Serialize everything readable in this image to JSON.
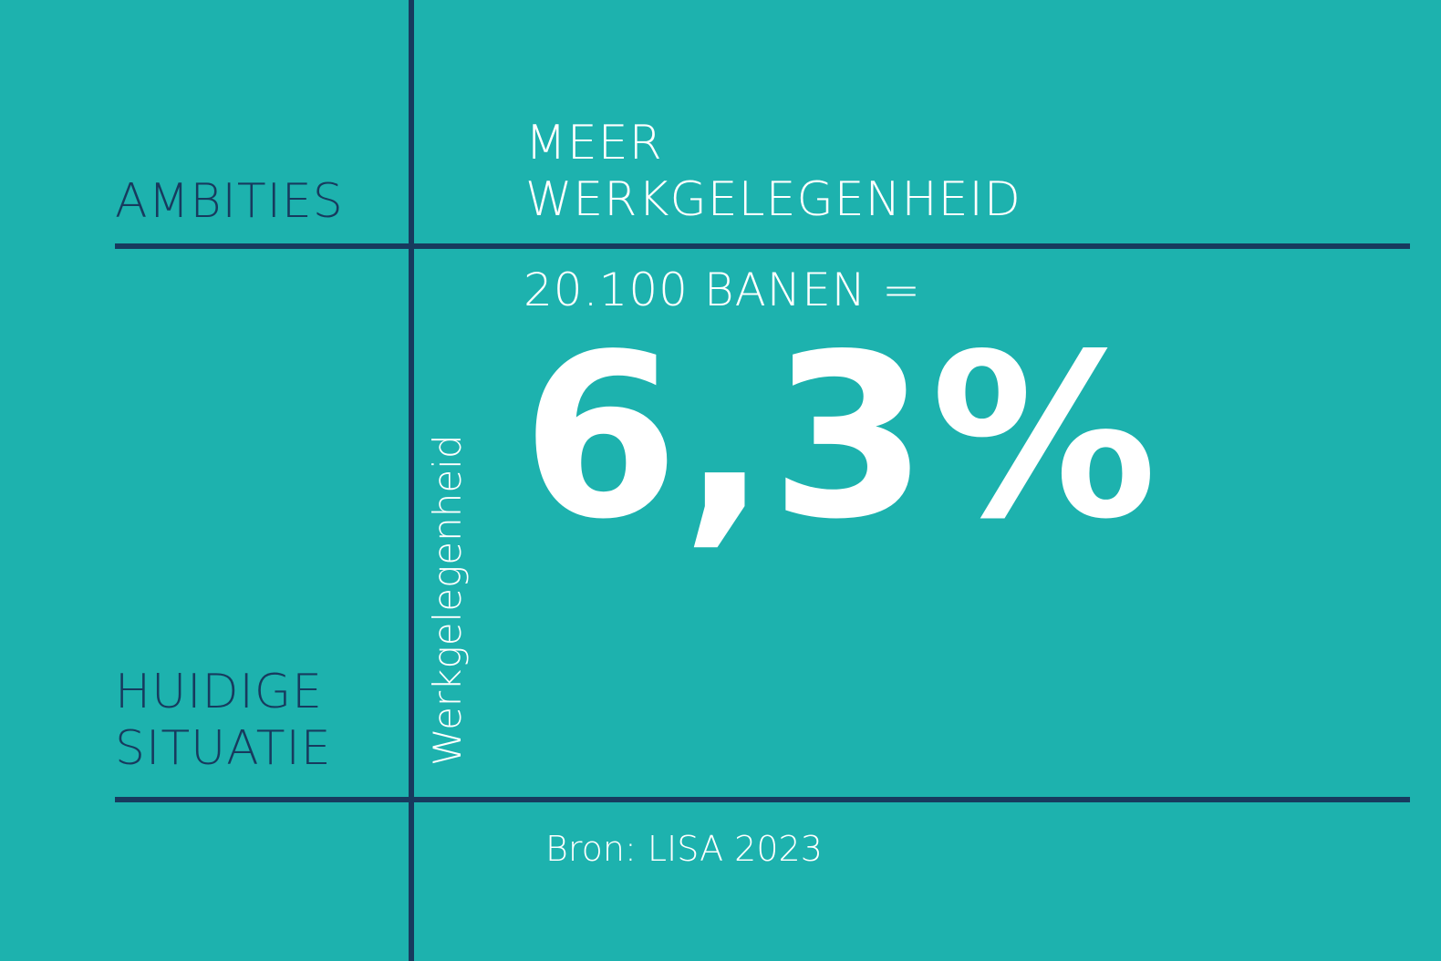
{
  "colors": {
    "background": "#1db2ae",
    "dark_text": "#173a5e",
    "light_text": "#ffffff",
    "lines": "#173a5e"
  },
  "labels": {
    "ambities": "AMBITIES",
    "huidige": "HUIDIGE\nSITUATIE"
  },
  "ambition": {
    "title": "MEER\nWERKGELEGENHEID"
  },
  "current": {
    "vertical_label": "Werkgelegenheid",
    "jobs_statement": "20.100 BANEN =",
    "big_value": "6,3%"
  },
  "footer": {
    "source": "Bron: LISA 2023"
  }
}
